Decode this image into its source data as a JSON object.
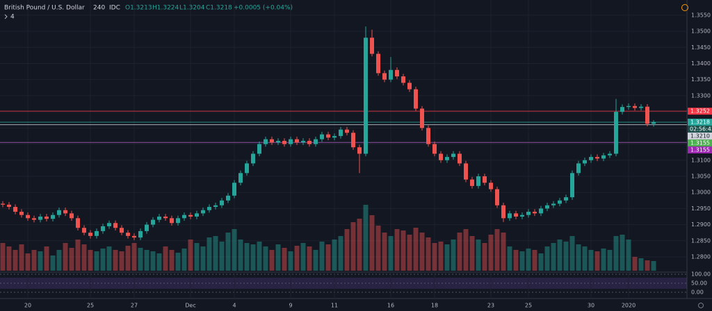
{
  "header": {
    "symbol": "British Pound / U.S. Dollar",
    "interval": "240",
    "source": "IDC",
    "open": "O1.3213",
    "high": "H1.3224",
    "low": "L1.3204",
    "close": "C1.3218",
    "change": "+0.0005 (+0.04%)",
    "indicator_count": "4"
  },
  "chart_data": {
    "type": "candlestick",
    "categories": [
      null,
      null,
      null,
      null,
      "20",
      null,
      null,
      null,
      null,
      null,
      null,
      null,
      null,
      null,
      "25",
      null,
      null,
      null,
      null,
      null,
      null,
      "27",
      null,
      null,
      null,
      null,
      null,
      null,
      null,
      null,
      "Dec",
      null,
      null,
      null,
      null,
      null,
      null,
      "4",
      null,
      null,
      null,
      null,
      null,
      null,
      null,
      null,
      "9",
      null,
      null,
      null,
      null,
      null,
      null,
      "11",
      null,
      null,
      null,
      null,
      null,
      null,
      null,
      null,
      "16",
      null,
      null,
      null,
      null,
      null,
      null,
      "18",
      null,
      null,
      null,
      null,
      null,
      null,
      null,
      null,
      "23",
      null,
      null,
      null,
      null,
      null,
      "25",
      null,
      null,
      null,
      null,
      null,
      null,
      null,
      null,
      null,
      "30",
      null,
      null,
      null,
      null,
      null,
      "2020",
      null,
      null,
      null,
      null
    ],
    "open": [
      1.2965,
      1.2962,
      1.2955,
      1.294,
      1.293,
      1.292,
      1.2915,
      1.2925,
      1.2918,
      1.293,
      1.2945,
      1.2935,
      1.292,
      1.289,
      1.2875,
      1.2865,
      1.288,
      1.2895,
      1.2905,
      1.289,
      1.2875,
      1.2865,
      1.286,
      1.288,
      1.29,
      1.2915,
      1.2925,
      1.292,
      1.2905,
      1.292,
      1.293,
      1.2925,
      1.2935,
      1.2945,
      1.2955,
      1.296,
      1.2975,
      1.299,
      1.303,
      1.306,
      1.309,
      1.312,
      1.315,
      1.3165,
      1.3155,
      1.316,
      1.315,
      1.3165,
      1.3155,
      1.316,
      1.315,
      1.3165,
      1.318,
      1.317,
      1.3175,
      1.3195,
      1.3185,
      1.314,
      1.312,
      1.348,
      1.343,
      1.337,
      1.335,
      1.338,
      1.336,
      1.334,
      1.332,
      1.326,
      1.32,
      1.315,
      1.312,
      1.31,
      1.311,
      1.312,
      1.309,
      1.304,
      1.302,
      1.305,
      1.303,
      1.301,
      1.296,
      1.292,
      1.2935,
      1.2925,
      1.293,
      1.294,
      1.2935,
      1.295,
      1.296,
      1.2965,
      1.2975,
      1.2985,
      1.306,
      1.309,
      1.31,
      1.311,
      1.3105,
      1.3115,
      1.312,
      1.325,
      1.3265,
      1.3268,
      1.3262,
      1.3266,
      1.3213
    ],
    "high": [
      1.2973,
      1.297,
      1.2963,
      1.2948,
      1.2938,
      1.2928,
      1.2933,
      1.2933,
      1.2938,
      1.2953,
      1.2953,
      1.2943,
      1.2928,
      1.2898,
      1.2883,
      1.2888,
      1.2903,
      1.2913,
      1.2913,
      1.2898,
      1.2883,
      1.2873,
      1.2888,
      1.2908,
      1.2923,
      1.2933,
      1.2933,
      1.2928,
      1.2928,
      1.2938,
      1.2938,
      1.2943,
      1.2953,
      1.2963,
      1.2968,
      1.2983,
      1.2998,
      1.3038,
      1.3068,
      1.3098,
      1.3128,
      1.3158,
      1.3173,
      1.3173,
      1.3168,
      1.3168,
      1.3173,
      1.3173,
      1.3168,
      1.3168,
      1.3173,
      1.3188,
      1.3188,
      1.3183,
      1.3203,
      1.3203,
      1.3193,
      1.3148,
      1.3515,
      1.3505,
      1.3438,
      1.3378,
      1.342,
      1.3388,
      1.3368,
      1.3348,
      1.3328,
      1.3268,
      1.3208,
      1.3158,
      1.3128,
      1.3118,
      1.3128,
      1.3128,
      1.3098,
      1.3048,
      1.3058,
      1.3058,
      1.3038,
      1.3018,
      1.2968,
      1.2943,
      1.2943,
      1.2938,
      1.2948,
      1.2948,
      1.2958,
      1.2968,
      1.2973,
      1.2983,
      1.2993,
      1.3068,
      1.3098,
      1.3108,
      1.3118,
      1.3118,
      1.3123,
      1.3128,
      1.329,
      1.3273,
      1.3276,
      1.3276,
      1.3274,
      1.3274,
      1.3224
    ],
    "low": [
      1.2954,
      1.2947,
      1.2932,
      1.2922,
      1.2912,
      1.2907,
      1.2907,
      1.291,
      1.291,
      1.2922,
      1.2927,
      1.2912,
      1.2882,
      1.2867,
      1.2857,
      1.2857,
      1.2872,
      1.2887,
      1.2882,
      1.2867,
      1.2857,
      1.2852,
      1.2852,
      1.2872,
      1.2892,
      1.2907,
      1.2912,
      1.2897,
      1.2897,
      1.2912,
      1.2917,
      1.2917,
      1.2927,
      1.2937,
      1.2947,
      1.2952,
      1.2967,
      1.2982,
      1.3022,
      1.3052,
      1.3082,
      1.3112,
      1.3142,
      1.3147,
      1.3147,
      1.3142,
      1.3142,
      1.3147,
      1.3147,
      1.3142,
      1.3142,
      1.3157,
      1.3162,
      1.3162,
      1.3167,
      1.3177,
      1.3132,
      1.306,
      1.3112,
      1.3422,
      1.3362,
      1.3342,
      1.3342,
      1.3352,
      1.3332,
      1.3312,
      1.3252,
      1.3192,
      1.3142,
      1.3112,
      1.3092,
      1.3092,
      1.3102,
      1.3082,
      1.3032,
      1.3012,
      1.3012,
      1.3022,
      1.3002,
      1.2952,
      1.2908,
      1.2912,
      1.2917,
      1.2917,
      1.2922,
      1.2927,
      1.2927,
      1.2942,
      1.2952,
      1.2957,
      1.2967,
      1.2977,
      1.3052,
      1.3082,
      1.3092,
      1.3097,
      1.3097,
      1.3107,
      1.3112,
      1.3242,
      1.3257,
      1.3254,
      1.3254,
      1.3205,
      1.3204
    ],
    "close": [
      1.2962,
      1.2955,
      1.294,
      1.293,
      1.292,
      1.2915,
      1.2925,
      1.2918,
      1.293,
      1.2945,
      1.2935,
      1.292,
      1.289,
      1.2875,
      1.2865,
      1.288,
      1.2895,
      1.2905,
      1.289,
      1.2875,
      1.2865,
      1.286,
      1.288,
      1.29,
      1.2915,
      1.2925,
      1.292,
      1.2905,
      1.292,
      1.293,
      1.2925,
      1.2935,
      1.2945,
      1.2955,
      1.296,
      1.2975,
      1.299,
      1.303,
      1.306,
      1.309,
      1.312,
      1.315,
      1.3165,
      1.3155,
      1.316,
      1.315,
      1.3165,
      1.3155,
      1.316,
      1.315,
      1.3165,
      1.318,
      1.317,
      1.3175,
      1.3195,
      1.3185,
      1.314,
      1.312,
      1.348,
      1.343,
      1.337,
      1.335,
      1.338,
      1.336,
      1.334,
      1.332,
      1.326,
      1.32,
      1.315,
      1.312,
      1.31,
      1.311,
      1.312,
      1.309,
      1.304,
      1.302,
      1.305,
      1.303,
      1.301,
      1.296,
      1.292,
      1.2935,
      1.2925,
      1.293,
      1.294,
      1.2935,
      1.295,
      1.296,
      1.2965,
      1.2975,
      1.2985,
      1.306,
      1.309,
      1.31,
      1.311,
      1.3105,
      1.3115,
      1.312,
      1.325,
      1.3265,
      1.3268,
      1.3262,
      1.3266,
      1.3213,
      1.3218
    ],
    "volume": [
      40,
      35,
      30,
      38,
      25,
      30,
      28,
      35,
      22,
      30,
      40,
      33,
      45,
      38,
      30,
      28,
      32,
      35,
      30,
      28,
      36,
      40,
      33,
      30,
      28,
      25,
      35,
      30,
      26,
      32,
      45,
      40,
      35,
      48,
      50,
      42,
      55,
      60,
      45,
      40,
      38,
      42,
      35,
      30,
      38,
      33,
      28,
      36,
      40,
      35,
      30,
      42,
      38,
      45,
      50,
      60,
      70,
      75,
      95,
      80,
      65,
      55,
      50,
      60,
      58,
      52,
      62,
      55,
      48,
      40,
      42,
      38,
      45,
      55,
      60,
      50,
      45,
      40,
      52,
      60,
      55,
      35,
      30,
      28,
      32,
      30,
      25,
      35,
      40,
      45,
      42,
      50,
      38,
      35,
      30,
      28,
      32,
      30,
      50,
      52,
      45,
      20,
      18,
      15,
      14
    ],
    "up_color": "#26a69a",
    "down_color": "#ef5350",
    "ylim": [
      1.2757,
      1.3597
    ],
    "yticks": [
      {
        "value": 1.28,
        "label": "1.2800"
      },
      {
        "value": 1.285,
        "label": "1.2850"
      },
      {
        "value": 1.29,
        "label": "1.2900"
      },
      {
        "value": 1.295,
        "label": "1.2950"
      },
      {
        "value": 1.3,
        "label": "1.3000"
      },
      {
        "value": 1.305,
        "label": "1.3050"
      },
      {
        "value": 1.31,
        "label": "1.3100"
      },
      {
        "value": 1.315,
        "label": "1.3150"
      },
      {
        "value": 1.32,
        "label": "1.3200"
      },
      {
        "value": 1.325,
        "label": "1.3250"
      },
      {
        "value": 1.33,
        "label": "1.3300"
      },
      {
        "value": 1.335,
        "label": "1.3350"
      },
      {
        "value": 1.34,
        "label": "1.3400"
      },
      {
        "value": 1.345,
        "label": "1.3450"
      },
      {
        "value": 1.35,
        "label": "1.3500"
      },
      {
        "value": 1.355,
        "label": "1.3550"
      }
    ],
    "price_tags": [
      {
        "value": 1.3252,
        "label": "1.3252",
        "color": "#f23645"
      },
      {
        "value": 1.3218,
        "label": "1.3218",
        "color": "#26a69a"
      },
      {
        "value": 1.321,
        "label": "1.3210",
        "color": "#d1d4dc"
      },
      {
        "value": 1.3155,
        "label": "1.3155",
        "color": "#4caf50"
      },
      {
        "value": 1.3155,
        "label": "1.3155",
        "color": "#9c27b0"
      }
    ],
    "countdown": "02:56:43",
    "grid": true,
    "oscillator": {
      "ylim": [
        0,
        100
      ],
      "yticks": [
        {
          "value": 100,
          "label": "100.00"
        },
        {
          "value": 50,
          "label": "50.00"
        },
        {
          "value": 0,
          "label": "0.00"
        }
      ]
    }
  }
}
